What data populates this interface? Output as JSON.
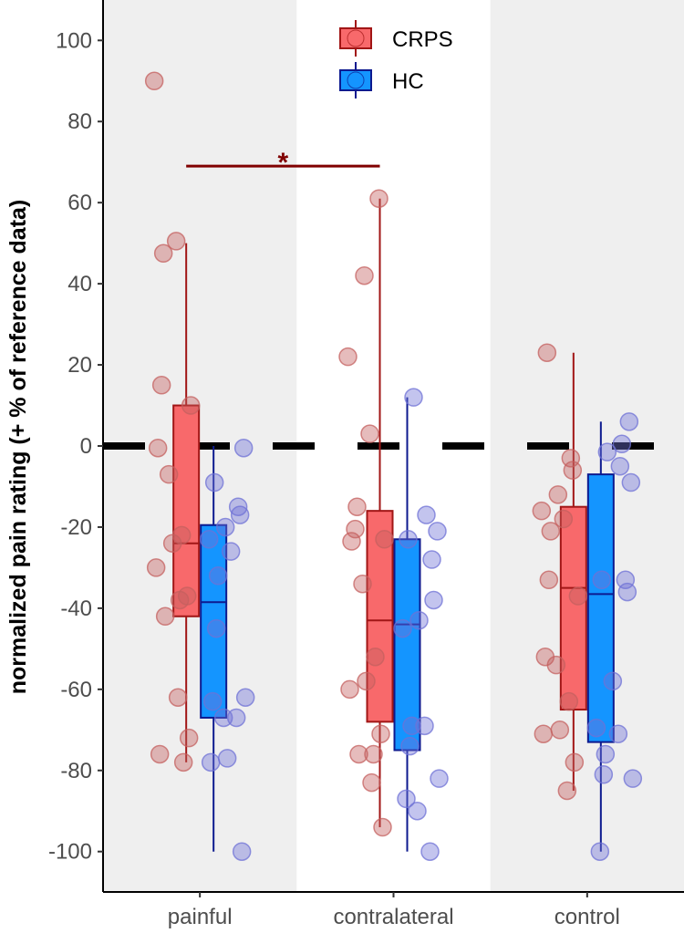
{
  "chart_data": {
    "type": "boxplot",
    "ylabel": "normalized pain rating (+ % of reference data)",
    "xlabel": "",
    "ylim": [
      -110,
      110
    ],
    "y_ticks": [
      100,
      80,
      60,
      40,
      20,
      0,
      -20,
      -40,
      -60,
      -80,
      -100
    ],
    "y_tick_labels": [
      "100",
      "80",
      "60",
      "40",
      "20",
      "0",
      "-20",
      "-40",
      "-60",
      "-80",
      "-100"
    ],
    "categories": [
      "painful",
      "contralateral",
      "control"
    ],
    "reference_line": 0,
    "legend": {
      "position": "top-center",
      "items": [
        {
          "label": "CRPS",
          "color": "#f8696b",
          "stroke": "#a11616"
        },
        {
          "label": "HC",
          "color": "#1495ff",
          "stroke": "#0d1a8f"
        }
      ]
    },
    "significance": {
      "label": "*",
      "from_category": "painful",
      "to_category": "contralateral",
      "series": "CRPS",
      "y": 69,
      "color": "#800000"
    },
    "series": [
      {
        "name": "CRPS",
        "fill": "#f8696b",
        "stroke": "#a11616",
        "point_color": "#c4605f",
        "boxes": [
          {
            "category": "painful",
            "whisker_low": -78,
            "q1": -42,
            "median": -24,
            "q3": 10,
            "whisker_high": 50
          },
          {
            "category": "contralateral",
            "whisker_low": -94,
            "q1": -68,
            "median": -43,
            "q3": -16,
            "whisker_high": 61
          },
          {
            "category": "control",
            "whisker_low": -85,
            "q1": -65,
            "median": -35,
            "q3": -15,
            "whisker_high": 23
          }
        ],
        "points": [
          {
            "category": "painful",
            "values": [
              90,
              50.5,
              47.5,
              15,
              10,
              -0.5,
              -7,
              -22,
              -24,
              -30,
              -37,
              -38,
              -42,
              -62,
              -72,
              -76,
              -78
            ]
          },
          {
            "category": "contralateral",
            "values": [
              61,
              42,
              22,
              3,
              -15,
              -20.5,
              -23,
              -23.5,
              -34,
              -52,
              -58,
              -60,
              -71,
              -76,
              -76,
              -83,
              -94
            ]
          },
          {
            "category": "control",
            "values": [
              23,
              -3,
              -6,
              -12,
              -16,
              -18,
              -21,
              -33,
              -37,
              -52,
              -54,
              -63,
              -70,
              -71,
              -78,
              -85
            ]
          }
        ]
      },
      {
        "name": "HC",
        "fill": "#1495ff",
        "stroke": "#0d1a8f",
        "point_color": "#6f72d6",
        "boxes": [
          {
            "category": "painful",
            "whisker_low": -100,
            "q1": -67,
            "median": -38.5,
            "q3": -19.5,
            "whisker_high": 0
          },
          {
            "category": "contralateral",
            "whisker_low": -100,
            "q1": -75,
            "median": -44,
            "q3": -23,
            "whisker_high": 12
          },
          {
            "category": "control",
            "whisker_low": -100,
            "q1": -73,
            "median": -36.5,
            "q3": -7,
            "whisker_high": 6
          }
        ],
        "points": [
          {
            "category": "painful",
            "values": [
              -0.5,
              -9,
              -15,
              -17,
              -20,
              -23,
              -26,
              -32,
              -45,
              -62,
              -63,
              -67,
              -67,
              -77,
              -78,
              -100
            ]
          },
          {
            "category": "contralateral",
            "values": [
              12,
              -17,
              -21,
              -23,
              -28,
              -38,
              -43,
              -45,
              -69,
              -69,
              -74,
              -82,
              -87,
              -90,
              -100
            ]
          },
          {
            "category": "control",
            "values": [
              6,
              0.5,
              -1.5,
              -5,
              -9,
              -33,
              -33,
              -36,
              -58,
              -69.5,
              -71,
              -76,
              -81,
              -82,
              -100
            ]
          }
        ]
      }
    ]
  }
}
